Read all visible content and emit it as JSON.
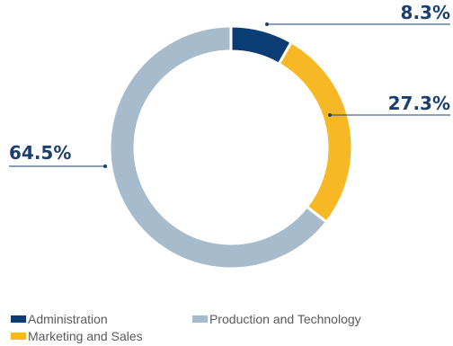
{
  "colors": {
    "label": "#1b3f6e",
    "leader": "#1b3f6e",
    "gap": "#ffffff"
  },
  "chart_data": {
    "type": "pie",
    "donut": true,
    "legend_position": "bottom",
    "slices": [
      {
        "name": "Administration",
        "value": 8.3,
        "label": "8.3%",
        "color": "#0a3d73"
      },
      {
        "name": "Marketing and Sales",
        "value": 27.3,
        "label": "27.3%",
        "color": "#f7b825"
      },
      {
        "name": "Production and Technology",
        "value": 64.5,
        "label": "64.5%",
        "color": "#a6bccc"
      }
    ]
  }
}
